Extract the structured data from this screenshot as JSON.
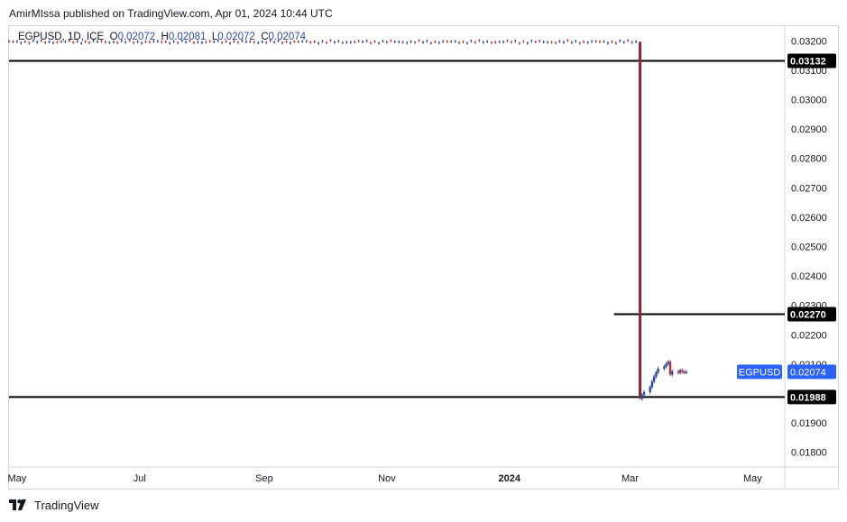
{
  "header": {
    "text": "AmirMIssa published on TradingView.com, Apr 01, 2024 10:44 UTC"
  },
  "legend": {
    "symbol": "EGPUSD, 1D, ICE",
    "o_label": "O",
    "o": "0.02072",
    "h_label": "H",
    "h": "0.02081",
    "l_label": "L",
    "l": "0.02072",
    "c_label": "C",
    "c": "0.02074"
  },
  "footer": {
    "brand": "TradingView"
  },
  "colors": {
    "up": "#2a4aa0",
    "down": "#b8323c",
    "drop": "#8b2232",
    "line": "#000000",
    "price_tag": "#2962ff"
  },
  "chart_data": {
    "type": "candlestick",
    "y_ticks": [
      "0.03200",
      "0.03100",
      "0.03000",
      "0.02900",
      "0.02800",
      "0.02700",
      "0.02600",
      "0.02500",
      "0.02400",
      "0.02300",
      "0.02200",
      "0.02100",
      "0.02000",
      "0.01900",
      "0.01800"
    ],
    "ylim": [
      0.0175,
      0.0325
    ],
    "x_ticks": [
      {
        "label": "May",
        "date": "2023-05-01"
      },
      {
        "label": "Jul",
        "date": "2023-07-01"
      },
      {
        "label": "Sep",
        "date": "2023-09-01"
      },
      {
        "label": "Nov",
        "date": "2023-11-01"
      },
      {
        "label": "2024",
        "date": "2024-01-01",
        "bold": true
      },
      {
        "label": "Mar",
        "date": "2024-03-01"
      },
      {
        "label": "May",
        "date": "2024-05-01"
      }
    ],
    "xlim": [
      "2023-04-27",
      "2024-05-17"
    ],
    "horizontal_lines": [
      {
        "value": 0.03132,
        "label": "0.03132",
        "x_from": "2023-04-27"
      },
      {
        "value": 0.0227,
        "label": "0.02270",
        "x_from": "2024-02-22"
      },
      {
        "value": 0.01988,
        "label": "0.01988",
        "x_from": "2023-04-27"
      }
    ],
    "last_price": {
      "symbol": "EGPUSD",
      "value": 0.02074,
      "label": "0.02074"
    },
    "flat_period": {
      "start": "2023-04-27",
      "end": "2024-03-05",
      "level": 0.03197
    },
    "drop": {
      "date": "2024-03-06",
      "from": 0.03197,
      "to": 0.01982
    },
    "recovery": [
      {
        "date": "2024-03-07",
        "close": 0.01995
      },
      {
        "date": "2024-03-08",
        "close": 0.02005
      },
      {
        "date": "2024-03-11",
        "close": 0.02022
      },
      {
        "date": "2024-03-12",
        "close": 0.02041
      },
      {
        "date": "2024-03-13",
        "close": 0.02058
      },
      {
        "date": "2024-03-14",
        "close": 0.02072
      },
      {
        "date": "2024-03-15",
        "close": 0.02085
      },
      {
        "date": "2024-03-18",
        "close": 0.02092
      },
      {
        "date": "2024-03-19",
        "close": 0.02101
      },
      {
        "date": "2024-03-20",
        "close": 0.02108
      },
      {
        "date": "2024-03-21",
        "close": 0.02065
      },
      {
        "date": "2024-03-22",
        "close": 0.02075
      },
      {
        "date": "2024-03-25",
        "close": 0.02071
      },
      {
        "date": "2024-03-26",
        "close": 0.02079
      },
      {
        "date": "2024-03-27",
        "close": 0.02074
      },
      {
        "date": "2024-03-28",
        "close": 0.02072
      },
      {
        "date": "2024-03-29",
        "close": 0.02074
      }
    ]
  }
}
